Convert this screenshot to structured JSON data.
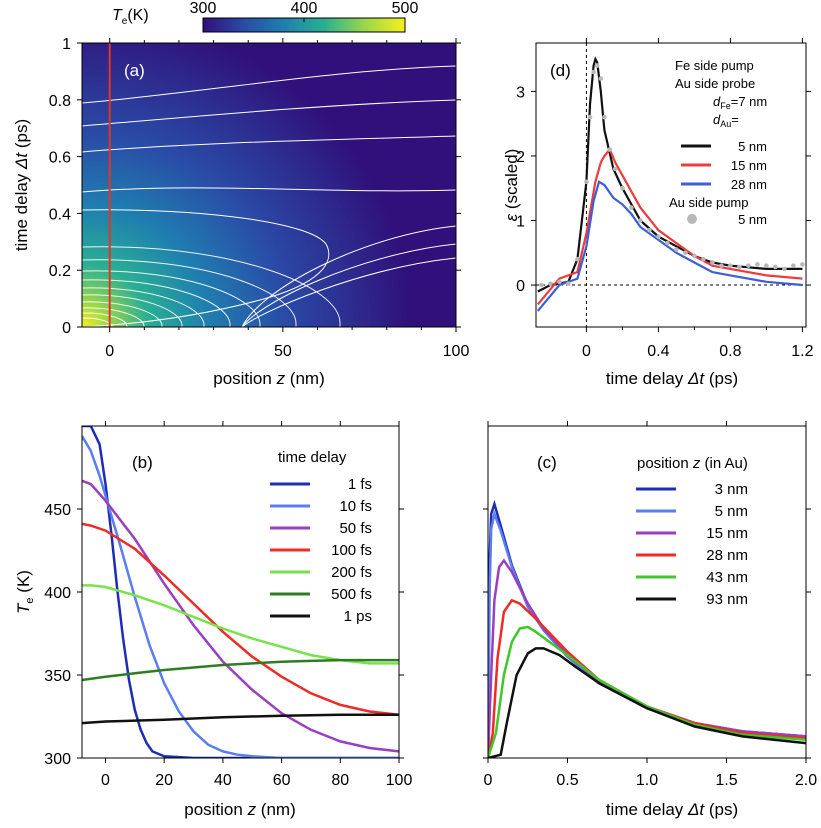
{
  "colorbar": {
    "label_main": "T",
    "label_sub": "e",
    "label_unit": "(K)",
    "ticks": [
      300,
      400,
      500
    ],
    "colors": [
      "#30107a",
      "#2a4aa6",
      "#1f7fb0",
      "#2aaf92",
      "#9bd64b",
      "#f4f01e"
    ]
  },
  "chart_data": [
    {
      "panel": "(a)",
      "type": "heatmap",
      "x_label_parts": [
        "position ",
        "z",
        " (nm)"
      ],
      "y_label_parts": [
        "time delay ",
        "Δt",
        " (ps)"
      ],
      "x_ticks": [
        0,
        50,
        100
      ],
      "y_ticks": [
        0,
        0.2,
        0.4,
        0.6,
        0.8,
        1
      ],
      "y_tick_labels": [
        "0",
        "0.2",
        "0.4",
        "0.6",
        "0.8",
        "1"
      ],
      "xlim": [
        -8,
        100
      ],
      "ylim": [
        0,
        1
      ],
      "marker_line_x": 0,
      "marker_color": "#e8341c",
      "contour_color": "#ffffff"
    },
    {
      "panel": "(b)",
      "type": "line",
      "x_label_parts": [
        "position ",
        "z",
        " (nm)"
      ],
      "y_label_parts": [
        "T",
        "e",
        " (K)"
      ],
      "x_ticks": [
        0,
        20,
        40,
        60,
        80,
        100
      ],
      "y_ticks": [
        300,
        350,
        400,
        450
      ],
      "xlim": [
        -8,
        100
      ],
      "ylim": [
        300,
        500
      ],
      "legend_title": "time delay",
      "series": [
        {
          "name": "1 fs",
          "color": "#1d2db5",
          "x": [
            -8,
            -5,
            -2,
            0,
            2,
            4,
            6,
            8,
            10,
            12,
            14,
            16,
            20,
            30,
            100
          ],
          "y": [
            500,
            500,
            489,
            465,
            435,
            402,
            372,
            347,
            329,
            317,
            309,
            304,
            301,
            300,
            300
          ]
        },
        {
          "name": "10 fs",
          "color": "#5a7ef0",
          "x": [
            -8,
            -5,
            -2,
            0,
            5,
            10,
            15,
            20,
            25,
            30,
            35,
            40,
            45,
            50,
            60,
            80,
            100
          ],
          "y": [
            494,
            485,
            470,
            458,
            428,
            397,
            368,
            345,
            328,
            316,
            308,
            304,
            302,
            301,
            300,
            300,
            300
          ]
        },
        {
          "name": "50 fs",
          "color": "#9a3fc0",
          "x": [
            -8,
            -5,
            0,
            10,
            20,
            30,
            40,
            50,
            60,
            70,
            80,
            90,
            100
          ],
          "y": [
            467,
            465,
            455,
            432,
            405,
            380,
            358,
            341,
            327,
            317,
            310,
            306,
            304
          ]
        },
        {
          "name": "100 fs",
          "color": "#ee2c25",
          "x": [
            -8,
            -5,
            0,
            10,
            20,
            30,
            40,
            50,
            60,
            70,
            80,
            90,
            100
          ],
          "y": [
            441,
            440,
            437,
            426,
            410,
            393,
            376,
            361,
            349,
            339,
            332,
            328,
            326
          ]
        },
        {
          "name": "200 fs",
          "color": "#77e34a",
          "x": [
            -8,
            -5,
            0,
            10,
            20,
            30,
            40,
            50,
            60,
            70,
            80,
            90,
            100
          ],
          "y": [
            404,
            404,
            403,
            398,
            392,
            385,
            378,
            372,
            367,
            362,
            359,
            357,
            357
          ]
        },
        {
          "name": "500 fs",
          "color": "#2e7d22",
          "x": [
            -8,
            0,
            10,
            20,
            30,
            40,
            50,
            60,
            70,
            80,
            90,
            100
          ],
          "y": [
            347,
            349,
            351,
            353,
            354.5,
            356,
            357,
            358,
            358.5,
            359,
            359,
            359
          ]
        },
        {
          "name": "1 ps",
          "color": "#111111",
          "x": [
            -8,
            0,
            20,
            40,
            60,
            80,
            100
          ],
          "y": [
            321,
            322,
            323,
            324.5,
            325.5,
            326,
            326
          ]
        }
      ]
    },
    {
      "panel": "(c)",
      "type": "line",
      "x_label_parts": [
        "time delay ",
        "Δt",
        " (ps)"
      ],
      "x_ticks": [
        0,
        0.5,
        1.0,
        1.5,
        2.0
      ],
      "x_tick_labels": [
        "0",
        "0.5",
        "1.0",
        "1.5",
        "2.0"
      ],
      "xlim": [
        0,
        2.0
      ],
      "ylim": [
        300,
        500
      ],
      "legend_title_parts": [
        "position ",
        "z",
        " (in Au)"
      ],
      "series": [
        {
          "name": "3 nm",
          "color": "#1d2db5",
          "x": [
            0,
            0.01,
            0.02,
            0.04,
            0.08,
            0.15,
            0.25,
            0.35,
            0.5,
            0.7,
            1.0,
            1.3,
            1.6,
            2.0
          ],
          "y": [
            300,
            420,
            447,
            453,
            440,
            416,
            392,
            377,
            361,
            345,
            330,
            321,
            316,
            313
          ]
        },
        {
          "name": "5 nm",
          "color": "#5a7ef0",
          "x": [
            0,
            0.01,
            0.02,
            0.04,
            0.08,
            0.15,
            0.25,
            0.35,
            0.5,
            0.7,
            1.0,
            1.3,
            1.6,
            2.0
          ],
          "y": [
            300,
            400,
            438,
            447,
            437,
            415,
            391,
            377,
            361,
            345,
            330,
            321,
            316,
            313
          ]
        },
        {
          "name": "15 nm",
          "color": "#9a3fc0",
          "x": [
            0,
            0.02,
            0.04,
            0.07,
            0.1,
            0.15,
            0.25,
            0.35,
            0.5,
            0.7,
            1.0,
            1.3,
            1.6,
            2.0
          ],
          "y": [
            300,
            350,
            395,
            415,
            419,
            412,
            393,
            378,
            362,
            346,
            331,
            321,
            316,
            313
          ]
        },
        {
          "name": "28 nm",
          "color": "#ee2c25",
          "x": [
            0,
            0.03,
            0.06,
            0.1,
            0.15,
            0.2,
            0.3,
            0.4,
            0.5,
            0.7,
            1.0,
            1.3,
            1.6,
            2.0
          ],
          "y": [
            300,
            315,
            360,
            388,
            395,
            393,
            384,
            374,
            364,
            347,
            331,
            321,
            315,
            312
          ]
        },
        {
          "name": "43 nm",
          "color": "#3ec82a",
          "x": [
            0,
            0.05,
            0.1,
            0.15,
            0.2,
            0.25,
            0.3,
            0.4,
            0.5,
            0.7,
            1.0,
            1.3,
            1.6,
            2.0
          ],
          "y": [
            300,
            315,
            350,
            370,
            378,
            379,
            376,
            369,
            362,
            347,
            331,
            320,
            314,
            311
          ]
        },
        {
          "name": "93 nm",
          "color": "#111111",
          "x": [
            0,
            0.08,
            0.12,
            0.18,
            0.25,
            0.3,
            0.35,
            0.45,
            0.55,
            0.7,
            1.0,
            1.3,
            1.6,
            2.0
          ],
          "y": [
            300,
            302,
            322,
            350,
            363,
            366,
            366,
            362,
            355,
            345,
            330,
            319,
            313,
            309
          ]
        }
      ]
    },
    {
      "panel": "(d)",
      "type": "line",
      "x_label_parts": [
        "time delay ",
        "Δt",
        " (ps)"
      ],
      "y_label_parts": [
        "ε",
        "   (scaled)"
      ],
      "x_ticks": [
        0,
        0.4,
        0.8,
        1.2
      ],
      "x_tick_labels": [
        "0",
        "0.4",
        "0.8",
        "1.2"
      ],
      "y_ticks": [
        0,
        1,
        2,
        3
      ],
      "xlim": [
        -0.28,
        1.22
      ],
      "ylim": [
        -0.65,
        3.75
      ],
      "legend_lines": [
        {
          "parts": [
            "Fe side pump"
          ]
        },
        {
          "parts": [
            "Au side probe"
          ]
        },
        {
          "parts": [
            "d",
            "Fe",
            "=7 nm"
          ]
        },
        {
          "parts": [
            "d",
            "Au",
            "="
          ]
        }
      ],
      "legend_title2": "Au side pump",
      "series": [
        {
          "name": "5 nm",
          "color": "#111111",
          "x": [
            -0.27,
            -0.2,
            -0.1,
            -0.05,
            0,
            0.02,
            0.04,
            0.05,
            0.06,
            0.08,
            0.1,
            0.15,
            0.2,
            0.3,
            0.4,
            0.5,
            0.6,
            0.7,
            0.8,
            1.0,
            1.2
          ],
          "y": [
            -0.1,
            0.0,
            0.05,
            0.4,
            1.6,
            2.8,
            3.4,
            3.5,
            3.45,
            3.0,
            2.4,
            1.8,
            1.5,
            1.0,
            0.75,
            0.6,
            0.45,
            0.35,
            0.3,
            0.25,
            0.25
          ]
        },
        {
          "name": "15 nm",
          "color": "#ee3b3b",
          "x": [
            -0.27,
            -0.15,
            -0.05,
            0,
            0.05,
            0.08,
            0.1,
            0.13,
            0.16,
            0.2,
            0.25,
            0.3,
            0.4,
            0.5,
            0.6,
            0.7,
            0.8,
            1.0,
            1.2
          ],
          "y": [
            -0.3,
            0.1,
            0.2,
            0.8,
            1.6,
            1.9,
            2.0,
            2.1,
            1.9,
            1.7,
            1.45,
            1.2,
            0.85,
            0.65,
            0.45,
            0.3,
            0.25,
            0.15,
            0.1
          ]
        },
        {
          "name": "28 nm",
          "color": "#3a5fd8",
          "x": [
            -0.27,
            -0.15,
            -0.05,
            0,
            0.04,
            0.07,
            0.1,
            0.15,
            0.2,
            0.25,
            0.3,
            0.4,
            0.5,
            0.6,
            0.7,
            0.8,
            1.0,
            1.2
          ],
          "y": [
            -0.4,
            0.0,
            0.1,
            0.6,
            1.3,
            1.6,
            1.55,
            1.35,
            1.25,
            1.1,
            0.9,
            0.7,
            0.5,
            0.35,
            0.2,
            0.15,
            0.05,
            0.0
          ]
        }
      ],
      "dots": {
        "name": "5 nm",
        "color": "#b8b8b8",
        "x": [
          -0.25,
          -0.2,
          -0.15,
          -0.1,
          -0.05,
          0,
          0.02,
          0.04,
          0.06,
          0.08,
          0.1,
          0.13,
          0.16,
          0.2,
          0.25,
          0.3,
          0.35,
          0.4,
          0.45,
          0.5,
          0.55,
          0.6,
          0.65,
          0.7,
          0.75,
          0.8,
          0.85,
          0.9,
          0.95,
          1.0,
          1.05,
          1.1,
          1.15,
          1.2
        ],
        "y": [
          0.0,
          0.02,
          0.05,
          0.02,
          0.4,
          1.6,
          2.6,
          3.3,
          3.4,
          3.2,
          2.6,
          2.1,
          1.8,
          1.5,
          1.2,
          1.0,
          0.85,
          0.75,
          0.65,
          0.55,
          0.5,
          0.45,
          0.4,
          0.35,
          0.3,
          0.3,
          0.28,
          0.3,
          0.32,
          0.3,
          0.28,
          0.25,
          0.3,
          0.32
        ]
      }
    }
  ]
}
